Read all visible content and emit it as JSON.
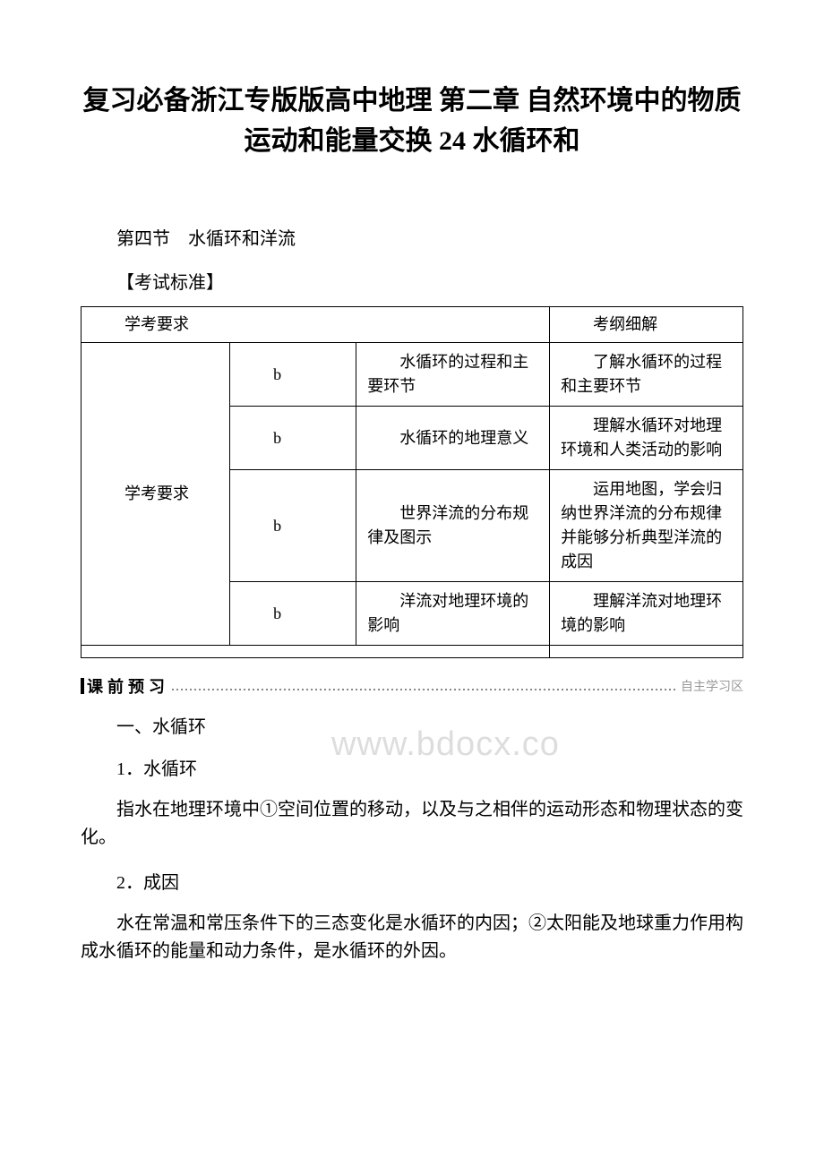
{
  "title": "复习必备浙江专版版高中地理 第二章 自然环境中的物质运动和能量交换 24 水循环和",
  "subtitle": "第四节　水循环和洋流",
  "examLabel": "【考试标准】",
  "table": {
    "header": {
      "col1": "学考要求",
      "col4": "考纲细解"
    },
    "leftLabel": "学考要求",
    "rows": [
      {
        "c2": "b",
        "c3": "水循环的过程和主要环节",
        "c4": "了解水循环的过程和主要环节"
      },
      {
        "c2": "b",
        "c3": "水循环的地理意义",
        "c4": "理解水循环对地理环境和人类活动的影响"
      },
      {
        "c2": "b",
        "c3": "世界洋流的分布规律及图示",
        "c4": "运用地图，学会归纳世界洋流的分布规律并能够分析典型洋流的成因"
      },
      {
        "c2": "b",
        "c3": "洋流对地理环境的影响",
        "c4": "理解洋流对地理环境的影响"
      }
    ]
  },
  "banner": {
    "left": "课 前 预 习",
    "right": "自主学习区"
  },
  "body": {
    "h1": "一、水循环",
    "p1label": "1．水循环",
    "p1text": "指水在地理环境中①空间位置的移动，以及与之相伴的运动形态和物理状态的变化。",
    "p2label": "2．成因",
    "p2text": "水在常温和常压条件下的三态变化是水循环的内因；②太阳能及地球重力作用构成水循环的能量和动力条件，是水循环的外因。"
  },
  "watermark": "www.bdocx.co"
}
